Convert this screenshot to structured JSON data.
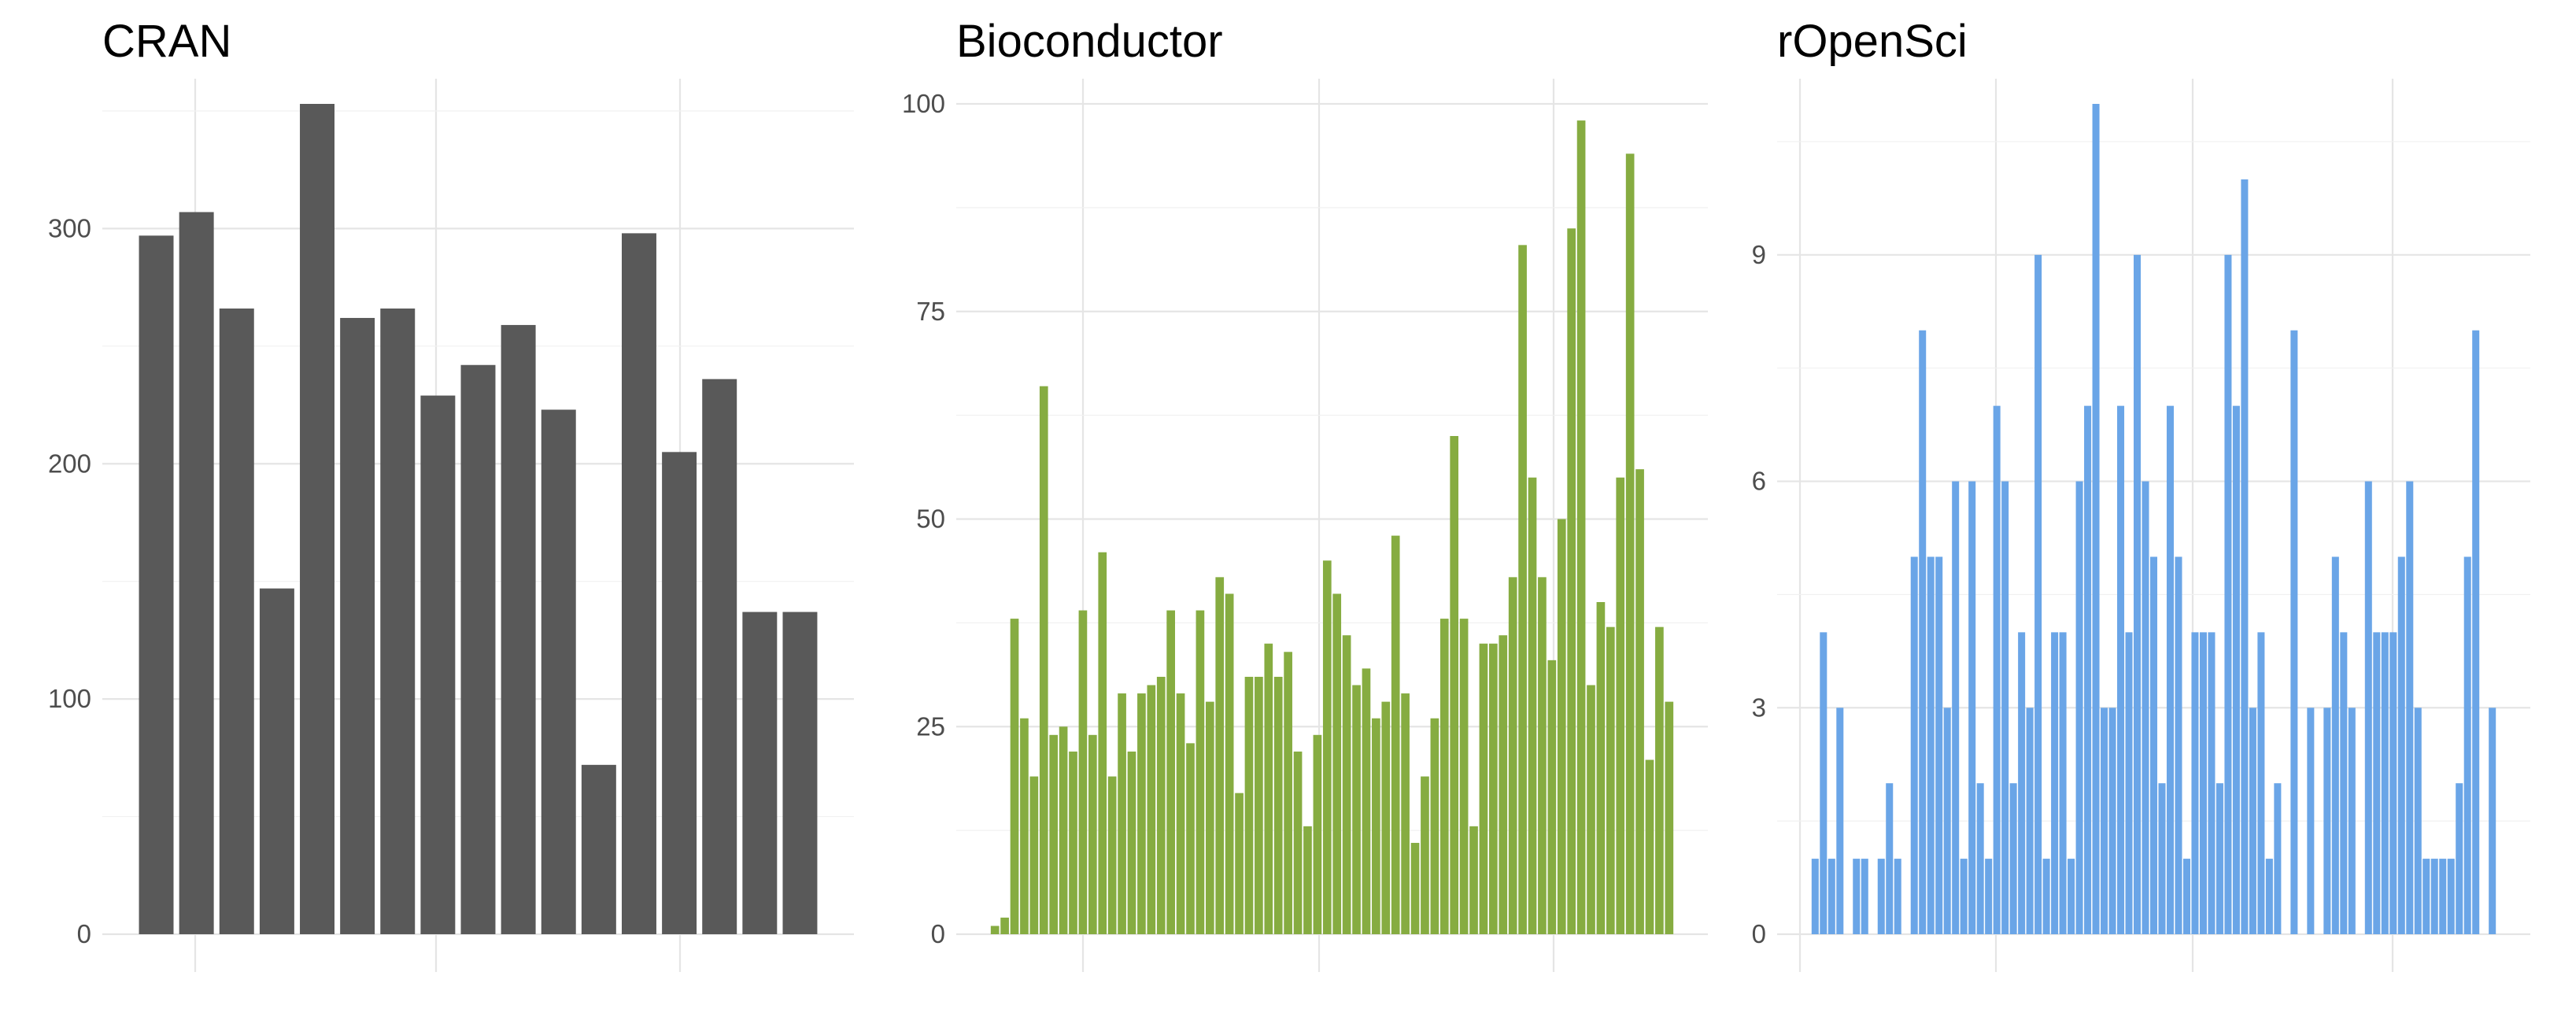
{
  "chart_data": [
    {
      "type": "bar",
      "title": "CRAN",
      "color": "#595959",
      "ylim": [
        0,
        353
      ],
      "yticks": [
        0,
        100,
        200,
        300
      ],
      "grid": true,
      "values": [
        297,
        307,
        266,
        147,
        353,
        262,
        266,
        229,
        242,
        259,
        223,
        72,
        298,
        205,
        236,
        137,
        137
      ]
    },
    {
      "type": "bar",
      "title": "Bioconductor",
      "color": "#86ac41",
      "ylim": [
        0,
        100
      ],
      "yticks": [
        0,
        25,
        50,
        75,
        100
      ],
      "grid": true,
      "values": [
        1,
        2,
        38,
        26,
        19,
        66,
        24,
        25,
        22,
        39,
        24,
        46,
        19,
        29,
        22,
        29,
        30,
        31,
        39,
        29,
        23,
        39,
        28,
        43,
        41,
        17,
        31,
        31,
        35,
        31,
        34,
        22,
        13,
        24,
        45,
        41,
        36,
        30,
        32,
        26,
        28,
        48,
        29,
        11,
        19,
        26,
        38,
        60,
        38,
        13,
        35,
        35,
        36,
        43,
        83,
        55,
        43,
        33,
        50,
        85,
        98,
        30,
        40,
        37,
        55,
        94,
        56,
        21,
        37,
        28
      ]
    },
    {
      "type": "bar",
      "title": "rOpenSci",
      "color": "#6aa5e7",
      "ylim": [
        0,
        11
      ],
      "yticks": [
        0,
        3,
        6,
        9
      ],
      "grid": true,
      "values": [
        1,
        4,
        1,
        3,
        0,
        1,
        1,
        0,
        1,
        2,
        1,
        0,
        5,
        8,
        5,
        5,
        3,
        6,
        1,
        6,
        2,
        1,
        7,
        6,
        2,
        4,
        3,
        9,
        1,
        4,
        4,
        1,
        6,
        7,
        11,
        3,
        3,
        7,
        4,
        9,
        6,
        5,
        2,
        7,
        5,
        1,
        4,
        4,
        4,
        2,
        9,
        7,
        10,
        3,
        4,
        1,
        2,
        0,
        8,
        0,
        3,
        0,
        3,
        5,
        4,
        3,
        0,
        6,
        4,
        4,
        4,
        5,
        6,
        3,
        1,
        1,
        1,
        1,
        2,
        5,
        8,
        0,
        3
      ]
    }
  ]
}
